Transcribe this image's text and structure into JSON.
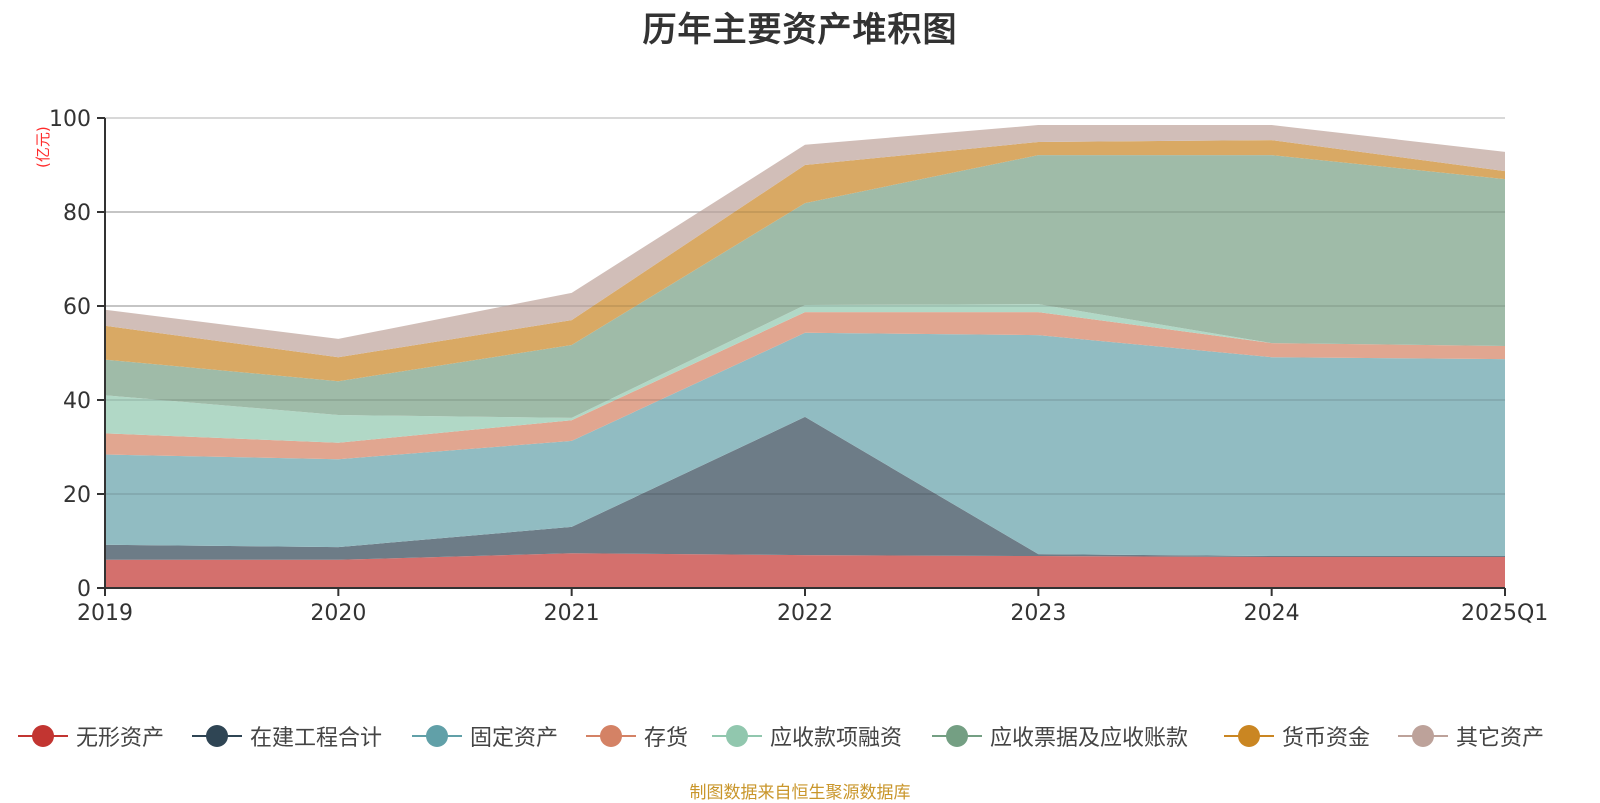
{
  "chart_data": {
    "type": "area",
    "stacked": true,
    "title": "历年主要资产堆积图",
    "ylabel": "(亿元)",
    "xlabel": "",
    "categories": [
      "2019",
      "2020",
      "2021",
      "2022",
      "2023",
      "2024",
      "2025Q1"
    ],
    "ylim": [
      0,
      100
    ],
    "yticks": [
      0,
      20,
      40,
      60,
      80,
      100
    ],
    "grid": true,
    "legend_position": "bottom",
    "series": [
      {
        "name": "无形资产",
        "color": "#c23531",
        "fill": "#d4706d",
        "values": [
          6.0,
          6.0,
          7.4,
          7.0,
          6.8,
          6.6,
          6.6
        ]
      },
      {
        "name": "在建工程合计",
        "color": "#2f4554",
        "fill": "#6d7c87",
        "values": [
          3.2,
          2.7,
          5.6,
          29.4,
          0.4,
          0.2,
          0.2
        ]
      },
      {
        "name": "固定资产",
        "color": "#61a0a8",
        "fill": "#91bcc2",
        "values": [
          19.2,
          18.7,
          18.3,
          17.9,
          46.6,
          42.3,
          41.9
        ]
      },
      {
        "name": "存货",
        "color": "#d48265",
        "fill": "#e1a690",
        "values": [
          4.5,
          3.5,
          4.4,
          4.4,
          4.9,
          3.0,
          2.8
        ]
      },
      {
        "name": "应收款项融资",
        "color": "#91c7ae",
        "fill": "#b1d8c6",
        "values": [
          8.1,
          5.9,
          0.5,
          1.5,
          1.7,
          0.0,
          0.0
        ]
      },
      {
        "name": "应收票据及应收账款",
        "color": "#749f83",
        "fill": "#9fbba8",
        "values": [
          7.6,
          7.2,
          15.5,
          21.7,
          31.7,
          40.0,
          35.5
        ]
      },
      {
        "name": "货币资金",
        "color": "#ca8622",
        "fill": "#d9a964",
        "values": [
          7.2,
          5.1,
          5.3,
          8.1,
          2.8,
          3.2,
          1.7
        ]
      },
      {
        "name": "其它资产",
        "color": "#bda29a",
        "fill": "#d1beb8",
        "values": [
          3.4,
          3.9,
          5.8,
          4.3,
          3.6,
          3.2,
          4.1
        ]
      }
    ]
  },
  "footer": "制图数据来自恒生聚源数据库"
}
